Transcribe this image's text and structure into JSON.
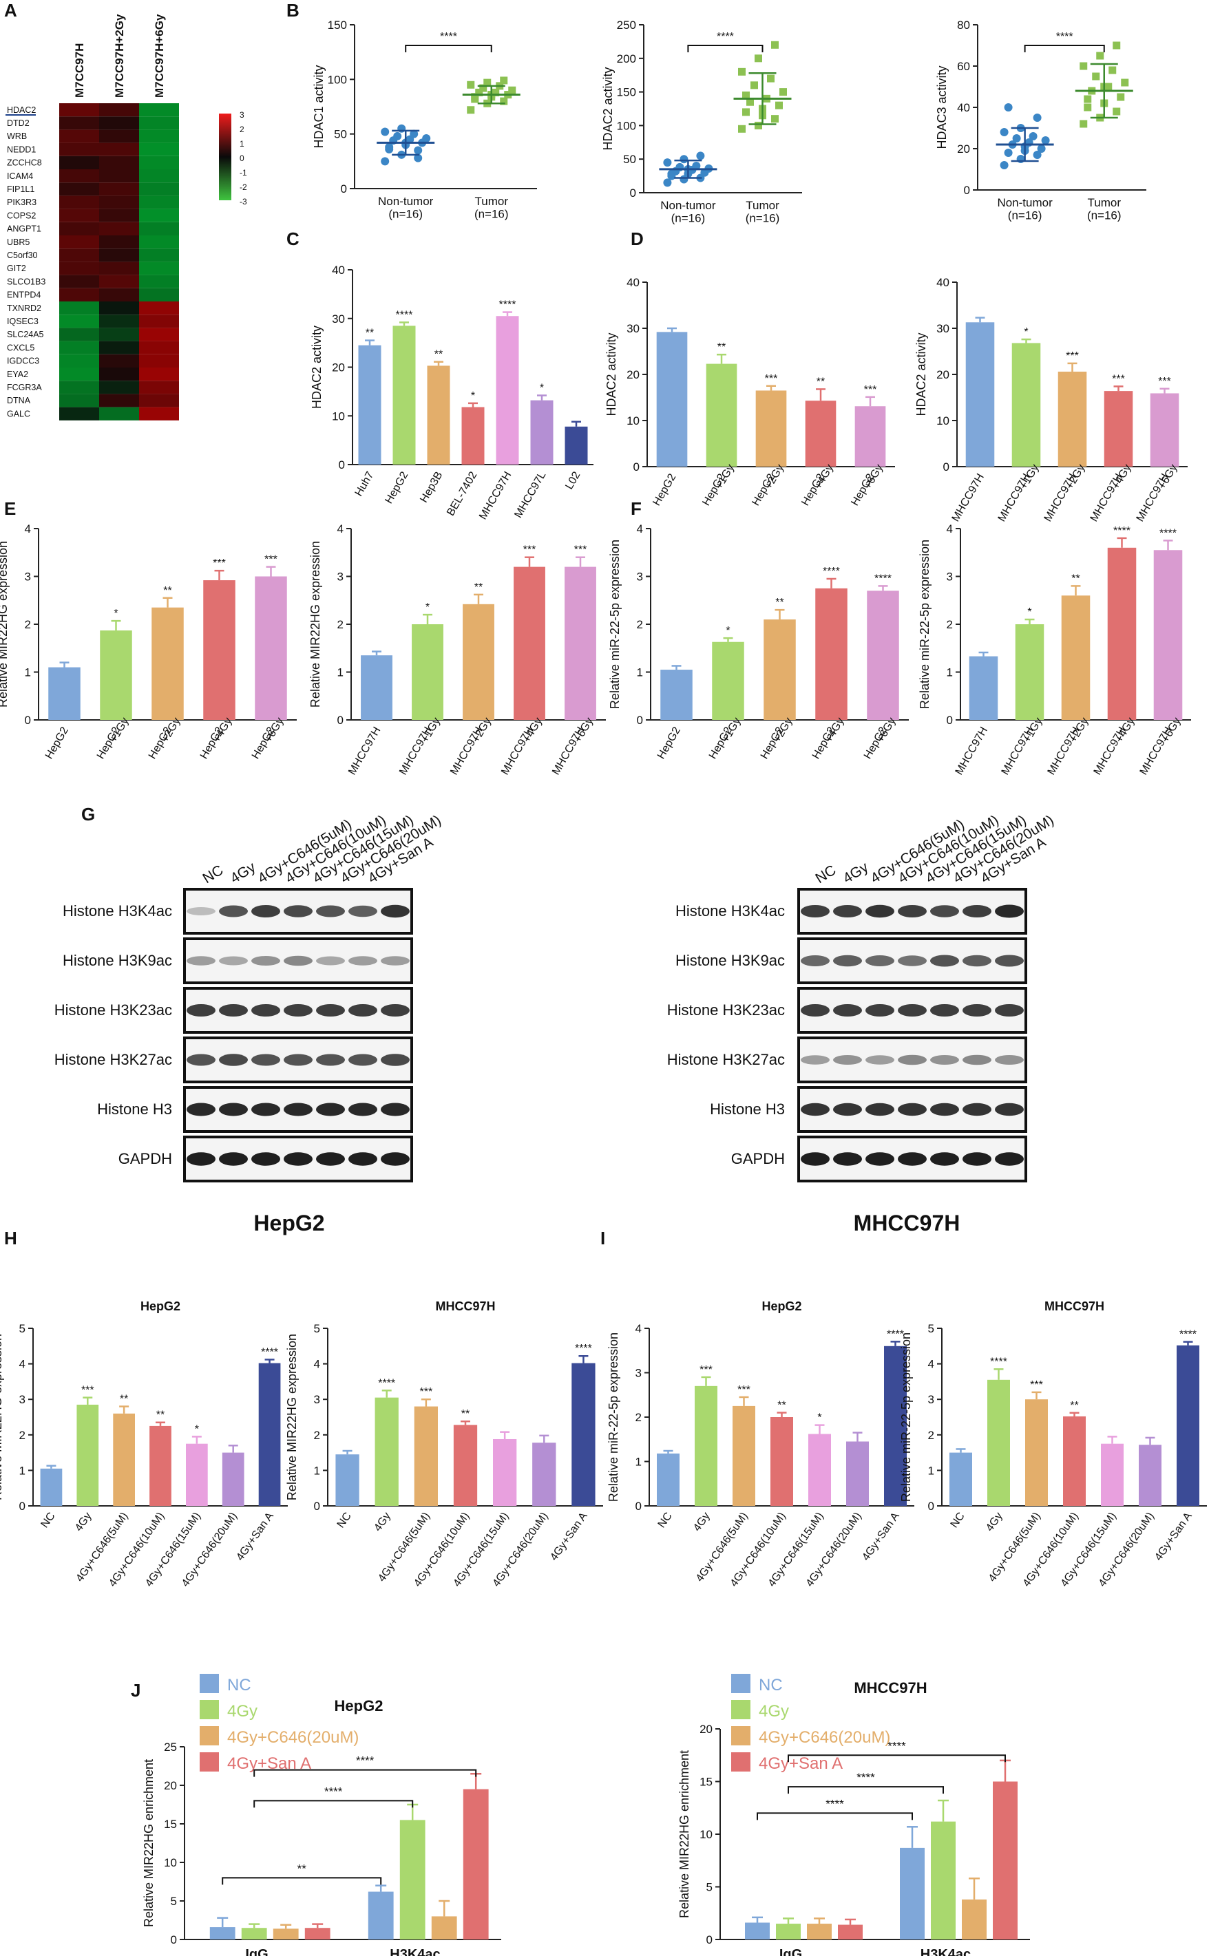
{
  "panel_labels": [
    "A",
    "B",
    "C",
    "D",
    "E",
    "F",
    "G",
    "H",
    "I",
    "J"
  ],
  "colors": {
    "nc": "#7fa7d9",
    "g1": "#a9d86e",
    "g2": "#e3ae6b",
    "g4": "#e07070",
    "g6": "#d99bd0",
    "lav": "#b48fd3",
    "navy": "#3b4b96",
    "lightpink": "#e8a0de",
    "nontumor": "#3b86c6",
    "tumor": "#8cc152",
    "meanbar_tumor": "#3c8a2e",
    "meanbar_nontumor": "#1f4f92",
    "err": "#000000"
  },
  "heatmap": {
    "columns": [
      "M7CC97H",
      "M7CC97H+2Gy",
      "M7CC97H+6Gy"
    ],
    "genes": [
      "HDAC2",
      "DTD2",
      "WRB",
      "NEDD1",
      "ZCCHC8",
      "ICAM4",
      "FIP1L1",
      "PIK3R3",
      "COPS2",
      "ANGPT1",
      "UBR5",
      "C5orf30",
      "GIT2",
      "SLCO1B3",
      "ENTPD4",
      "TXNRD2",
      "IQSEC3",
      "SLC24A5",
      "CXCL5",
      "IGDCC3",
      "EYA2",
      "FCGR3A",
      "DTNA",
      "GALC"
    ],
    "values": [
      [
        1.2,
        0.8,
        -2.2
      ],
      [
        0.6,
        0.3,
        -2.1
      ],
      [
        1.0,
        0.5,
        -2.2
      ],
      [
        0.9,
        0.9,
        -2.3
      ],
      [
        0.3,
        0.6,
        -2.2
      ],
      [
        0.8,
        0.6,
        -2.1
      ],
      [
        0.5,
        0.8,
        -2.0
      ],
      [
        0.9,
        0.7,
        -2.1
      ],
      [
        1.0,
        0.6,
        -2.3
      ],
      [
        0.8,
        0.9,
        -2.0
      ],
      [
        1.1,
        0.5,
        -2.2
      ],
      [
        0.9,
        0.4,
        -2.0
      ],
      [
        0.9,
        0.8,
        -2.2
      ],
      [
        0.6,
        1.0,
        -2.0
      ],
      [
        0.9,
        0.6,
        -1.8
      ],
      [
        -2.0,
        -0.2,
        1.8
      ],
      [
        -2.2,
        -0.6,
        1.6
      ],
      [
        -1.6,
        -0.9,
        1.9
      ],
      [
        -2.0,
        -0.3,
        1.7
      ],
      [
        -2.1,
        0.4,
        1.7
      ],
      [
        -2.2,
        0.2,
        1.9
      ],
      [
        -1.8,
        -0.4,
        1.5
      ],
      [
        -1.7,
        0.5,
        1.3
      ],
      [
        -0.5,
        -1.7,
        1.9
      ]
    ],
    "legend_ticks": [
      "3",
      "2",
      "1",
      "0",
      "-1",
      "-2",
      "-3"
    ]
  },
  "chart_data": [
    {
      "id": "B1",
      "type": "scatter",
      "ylabel": "HDAC1 activity",
      "ylim": [
        0,
        150
      ],
      "yticks": [
        0,
        50,
        100,
        150
      ],
      "categories": [
        "Non-tumor\n(n=16)",
        "Tumor\n(n=16)"
      ],
      "points": [
        [
          25,
          31,
          35,
          38,
          40,
          42,
          44,
          45,
          46,
          48,
          50,
          52,
          55,
          28,
          36,
          42
        ],
        [
          72,
          78,
          80,
          82,
          84,
          86,
          88,
          88,
          90,
          92,
          94,
          95,
          97,
          99,
          84,
          86
        ]
      ],
      "means": [
        42,
        86
      ],
      "sds": [
        11,
        8
      ],
      "sig": "****"
    },
    {
      "id": "B2",
      "type": "scatter",
      "ylabel": "HDAC2 activity",
      "ylim": [
        0,
        250
      ],
      "yticks": [
        0,
        50,
        100,
        150,
        200,
        250
      ],
      "categories": [
        "Non-tumor\n(n=16)",
        "Tumor\n(n=16)"
      ],
      "points": [
        [
          15,
          20,
          22,
          25,
          28,
          30,
          32,
          34,
          36,
          38,
          40,
          45,
          50,
          55,
          28,
          35
        ],
        [
          95,
          100,
          110,
          120,
          125,
          130,
          135,
          140,
          150,
          160,
          170,
          180,
          200,
          220,
          145,
          115
        ]
      ],
      "means": [
        35,
        140
      ],
      "sds": [
        13,
        38
      ],
      "sig": "****"
    },
    {
      "id": "B3",
      "type": "scatter",
      "ylabel": "HDAC3 activity",
      "ylim": [
        0,
        80
      ],
      "yticks": [
        0,
        20,
        40,
        60,
        80
      ],
      "categories": [
        "Non-tumor\n(n=16)",
        "Tumor\n(n=16)"
      ],
      "points": [
        [
          12,
          15,
          17,
          18,
          19,
          20,
          22,
          23,
          24,
          25,
          26,
          28,
          30,
          35,
          40,
          21
        ],
        [
          32,
          35,
          38,
          40,
          42,
          45,
          48,
          50,
          52,
          55,
          58,
          60,
          65,
          70,
          44,
          50
        ]
      ],
      "means": [
        22,
        48
      ],
      "sds": [
        8,
        13
      ],
      "sig": "****"
    },
    {
      "id": "C",
      "type": "bar",
      "ylabel": "HDAC2 activity",
      "ylim": [
        0,
        40
      ],
      "yticks": [
        0,
        10,
        20,
        30,
        40
      ],
      "categories": [
        "Huh7",
        "HepG2",
        "Hep3B",
        "BEL-7402",
        "MHCC97H",
        "MHCC97L",
        "L02"
      ],
      "values": [
        24.5,
        28.5,
        20.3,
        11.8,
        30.5,
        13.2,
        7.8
      ],
      "errors": [
        1.0,
        0.7,
        0.8,
        0.8,
        0.8,
        1.0,
        1.0
      ],
      "sig": [
        "**",
        "****",
        "**",
        "*",
        "****",
        "*",
        ""
      ],
      "color_keys": [
        "nc",
        "g1",
        "g2",
        "g4",
        "lightpink",
        "lav",
        "navy"
      ]
    },
    {
      "id": "D1",
      "type": "bar",
      "ylabel": "HDAC2 activity",
      "ylim": [
        0,
        40
      ],
      "yticks": [
        0,
        10,
        20,
        30,
        40
      ],
      "categories": [
        "HepG2",
        "HepG2\n+1Gy",
        "HepG2\n+2Gy",
        "HepG2\n+4Gy",
        "HepG2\n+6Gy"
      ],
      "values": [
        29.2,
        22.3,
        16.5,
        14.3,
        13.1
      ],
      "errors": [
        0.8,
        2.0,
        1.0,
        2.5,
        2.0
      ],
      "sig": [
        "",
        "**",
        "***",
        "**",
        "***"
      ],
      "color_keys": [
        "nc",
        "g1",
        "g2",
        "g4",
        "g6"
      ]
    },
    {
      "id": "D2",
      "type": "bar",
      "ylabel": "HDAC2 activity",
      "ylim": [
        0,
        40
      ],
      "yticks": [
        0,
        10,
        20,
        30,
        40
      ],
      "categories": [
        "MHCC97H",
        "MHCC97H\n+1Gy",
        "MHCC97H\n+2Gy",
        "MHCC97H\n+4Gy",
        "MHCC97H\n+6Gy"
      ],
      "values": [
        31.3,
        26.8,
        20.6,
        16.4,
        15.9
      ],
      "errors": [
        1.0,
        0.8,
        1.8,
        1.0,
        1.0
      ],
      "sig": [
        "",
        "*",
        "***",
        "***",
        "***"
      ],
      "color_keys": [
        "nc",
        "g1",
        "g2",
        "g4",
        "g6"
      ]
    },
    {
      "id": "E1",
      "type": "bar",
      "ylabel": "Relative MIR22HG expression",
      "ylim": [
        0,
        4
      ],
      "yticks": [
        0,
        1,
        2,
        3,
        4
      ],
      "categories": [
        "HepG2",
        "HepG2\n+1Gy",
        "HepG2\n+2Gy",
        "HepG2\n+4Gy",
        "HepG2\n+6Gy"
      ],
      "values": [
        1.1,
        1.87,
        2.35,
        2.92,
        3.0
      ],
      "errors": [
        0.1,
        0.2,
        0.2,
        0.2,
        0.2
      ],
      "sig": [
        "",
        "*",
        "**",
        "***",
        "***"
      ],
      "color_keys": [
        "nc",
        "g1",
        "g2",
        "g4",
        "g6"
      ]
    },
    {
      "id": "E2",
      "type": "bar",
      "ylabel": "Relative MIR22HG expression",
      "ylim": [
        0,
        4
      ],
      "yticks": [
        0,
        1,
        2,
        3,
        4
      ],
      "categories": [
        "MHCC97H",
        "MHCC97H\n+1Gy",
        "MHCC97H\n+2Gy",
        "MHCC97H\n+4Gy",
        "MHCC97H\n+6Gy"
      ],
      "values": [
        1.35,
        2.0,
        2.42,
        3.2,
        3.2
      ],
      "errors": [
        0.08,
        0.2,
        0.2,
        0.2,
        0.2
      ],
      "sig": [
        "",
        "*",
        "**",
        "***",
        "***"
      ],
      "color_keys": [
        "nc",
        "g1",
        "g2",
        "g4",
        "g6"
      ]
    },
    {
      "id": "F1",
      "type": "bar",
      "ylabel": "Relative miR-22-5p expression",
      "ylim": [
        0,
        4
      ],
      "yticks": [
        0,
        1,
        2,
        3,
        4
      ],
      "categories": [
        "HepG2",
        "HepG2\n+1Gy",
        "HepG2\n+2Gy",
        "HepG2\n+4Gy",
        "HepG2\n+6Gy"
      ],
      "values": [
        1.05,
        1.63,
        2.1,
        2.75,
        2.7
      ],
      "errors": [
        0.08,
        0.08,
        0.2,
        0.2,
        0.1
      ],
      "sig": [
        "",
        "*",
        "**",
        "****",
        "****"
      ],
      "color_keys": [
        "nc",
        "g1",
        "g2",
        "g4",
        "g6"
      ]
    },
    {
      "id": "F2",
      "type": "bar",
      "ylabel": "Relative miR-22-5p expression",
      "ylim": [
        0,
        4
      ],
      "yticks": [
        0,
        1,
        2,
        3,
        4
      ],
      "categories": [
        "MHCC97H",
        "MHCC97H\n+1Gy",
        "MHCC97H\n+2Gy",
        "MHCC97H\n+4Gy",
        "MHCC97H\n+6Gy"
      ],
      "values": [
        1.33,
        2.0,
        2.6,
        3.6,
        3.55
      ],
      "errors": [
        0.08,
        0.1,
        0.2,
        0.2,
        0.2
      ],
      "sig": [
        "",
        "*",
        "**",
        "****",
        "****"
      ],
      "color_keys": [
        "nc",
        "g1",
        "g2",
        "g4",
        "g6"
      ]
    },
    {
      "id": "H1",
      "type": "bar",
      "title": "HepG2",
      "ylabel": "Relative MIR22HG expression",
      "ylim": [
        0,
        5
      ],
      "yticks": [
        0,
        1,
        2,
        3,
        4,
        5
      ],
      "categories": [
        "NC",
        "4Gy",
        "4Gy+C646(5uM)",
        "4Gy+C646(10uM)",
        "4Gy+C646(15uM)",
        "4Gy+C646(20uM)",
        "4Gy+San A"
      ],
      "values": [
        1.05,
        2.85,
        2.6,
        2.25,
        1.75,
        1.5,
        4.02
      ],
      "errors": [
        0.08,
        0.2,
        0.2,
        0.1,
        0.2,
        0.2,
        0.1
      ],
      "sig": [
        "",
        "***",
        "**",
        "**",
        "*",
        "",
        "****"
      ],
      "color_keys": [
        "nc",
        "g1",
        "g2",
        "g4",
        "lightpink",
        "lav",
        "navy"
      ]
    },
    {
      "id": "H2",
      "type": "bar",
      "title": "MHCC97H",
      "ylabel": "Relative MIR22HG expression",
      "ylim": [
        0,
        5
      ],
      "yticks": [
        0,
        1,
        2,
        3,
        4,
        5
      ],
      "categories": [
        "NC",
        "4Gy",
        "4Gy+C646(5uM)",
        "4Gy+C646(10uM)",
        "4Gy+C646(15uM)",
        "4Gy+C646(20uM)",
        "4Gy+San A"
      ],
      "values": [
        1.45,
        3.05,
        2.8,
        2.28,
        1.88,
        1.78,
        4.02
      ],
      "errors": [
        0.1,
        0.2,
        0.2,
        0.1,
        0.2,
        0.2,
        0.2
      ],
      "sig": [
        "",
        "****",
        "***",
        "**",
        "",
        "",
        "****"
      ],
      "color_keys": [
        "nc",
        "g1",
        "g2",
        "g4",
        "lightpink",
        "lav",
        "navy"
      ]
    },
    {
      "id": "I1",
      "type": "bar",
      "title": "HepG2",
      "ylabel": "Relative miR-22-5p expression",
      "ylim": [
        0,
        4
      ],
      "yticks": [
        0,
        1,
        2,
        3,
        4
      ],
      "categories": [
        "NC",
        "4Gy",
        "4Gy+C646(5uM)",
        "4Gy+C646(10uM)",
        "4Gy+C646(15uM)",
        "4Gy+C646(20uM)",
        "4Gy+San A"
      ],
      "values": [
        1.18,
        2.7,
        2.25,
        2.0,
        1.62,
        1.45,
        3.6
      ],
      "errors": [
        0.06,
        0.2,
        0.2,
        0.1,
        0.2,
        0.2,
        0.1
      ],
      "sig": [
        "",
        "***",
        "***",
        "**",
        "*",
        "",
        "****"
      ],
      "color_keys": [
        "nc",
        "g1",
        "g2",
        "g4",
        "lightpink",
        "lav",
        "navy"
      ]
    },
    {
      "id": "I2",
      "type": "bar",
      "title": "MHCC97H",
      "ylabel": "Relative miR-22-5p expression",
      "ylim": [
        0,
        5
      ],
      "yticks": [
        0,
        1,
        2,
        3,
        4,
        5
      ],
      "categories": [
        "NC",
        "4Gy",
        "4Gy+C646(5uM)",
        "4Gy+C646(10uM)",
        "4Gy+C646(15uM)",
        "4Gy+C646(20uM)",
        "4Gy+San A"
      ],
      "values": [
        1.5,
        3.55,
        3.0,
        2.52,
        1.75,
        1.72,
        4.52
      ],
      "errors": [
        0.1,
        0.3,
        0.2,
        0.1,
        0.2,
        0.2,
        0.1
      ],
      "sig": [
        "",
        "****",
        "***",
        "**",
        "",
        "",
        "****"
      ],
      "color_keys": [
        "nc",
        "g1",
        "g2",
        "g4",
        "lightpink",
        "lav",
        "navy"
      ]
    },
    {
      "id": "J1",
      "type": "grouped_bar",
      "title": "HepG2",
      "ylabel": "Relative MIR22HG enrichment",
      "ylim": [
        0,
        25
      ],
      "yticks": [
        0,
        5,
        10,
        15,
        20,
        25
      ],
      "groups": [
        "IgG",
        "H3K4ac"
      ],
      "series": [
        {
          "name": "NC",
          "color_key": "nc",
          "values": [
            1.6,
            6.2
          ],
          "errors": [
            1.2,
            0.8
          ]
        },
        {
          "name": "4Gy",
          "color_key": "g1",
          "values": [
            1.5,
            15.5
          ],
          "errors": [
            0.5,
            2.0
          ]
        },
        {
          "name": "4Gy+C646(20uM)",
          "color_key": "g2",
          "values": [
            1.4,
            3.0
          ],
          "errors": [
            0.5,
            2.0
          ]
        },
        {
          "name": "4Gy+San A",
          "color_key": "g4",
          "values": [
            1.5,
            19.5
          ],
          "errors": [
            0.5,
            2.0
          ]
        }
      ],
      "brackets": [
        {
          "from": [
            0,
            0
          ],
          "to": [
            1,
            0
          ],
          "sig": "**",
          "y": 8
        },
        {
          "from": [
            0,
            1
          ],
          "to": [
            1,
            1
          ],
          "sig": "****",
          "y": 18
        },
        {
          "from": [
            0,
            1
          ],
          "to": [
            1,
            3
          ],
          "sig": "****",
          "y": 22
        }
      ]
    },
    {
      "id": "J2",
      "type": "grouped_bar",
      "title": "MHCC97H",
      "ylabel": "Relative MIR22HG enrichment",
      "ylim": [
        0,
        20
      ],
      "yticks": [
        0,
        5,
        10,
        15,
        20
      ],
      "groups": [
        "IgG",
        "H3K4ac"
      ],
      "series": [
        {
          "name": "NC",
          "color_key": "nc",
          "values": [
            1.6,
            8.7
          ],
          "errors": [
            0.5,
            2.0
          ]
        },
        {
          "name": "4Gy",
          "color_key": "g1",
          "values": [
            1.5,
            11.2
          ],
          "errors": [
            0.5,
            2.0
          ]
        },
        {
          "name": "4Gy+C646(20uM)",
          "color_key": "g2",
          "values": [
            1.5,
            3.8
          ],
          "errors": [
            0.5,
            2.0
          ]
        },
        {
          "name": "4Gy+San A",
          "color_key": "g4",
          "values": [
            1.4,
            15.0
          ],
          "errors": [
            0.5,
            2.0
          ]
        }
      ],
      "brackets": [
        {
          "from": [
            0,
            0
          ],
          "to": [
            1,
            0
          ],
          "sig": "****",
          "y": 12
        },
        {
          "from": [
            0,
            1
          ],
          "to": [
            1,
            1
          ],
          "sig": "****",
          "y": 14.5
        },
        {
          "from": [
            0,
            1
          ],
          "to": [
            1,
            3
          ],
          "sig": "****",
          "y": 17.5
        }
      ]
    }
  ],
  "blots": {
    "lanes": [
      "NC",
      "4Gy",
      "4Gy+C646(5uM)",
      "4Gy+C646(10uM)",
      "4Gy+C646(15uM)",
      "4Gy+C646(20uM)",
      "4Gy+San A"
    ],
    "rows": [
      "Histone H3K4ac",
      "Histone H3K9ac",
      "Histone H3K23ac",
      "Histone H3K27ac",
      "Histone H3",
      "GAPDH"
    ],
    "cell_lines": [
      "HepG2",
      "MHCC97H"
    ],
    "intensities": {
      "HepG2": [
        [
          0.2,
          0.7,
          0.8,
          0.75,
          0.7,
          0.65,
          0.85
        ],
        [
          0.35,
          0.3,
          0.4,
          0.45,
          0.3,
          0.35,
          0.35
        ],
        [
          0.8,
          0.8,
          0.8,
          0.8,
          0.8,
          0.8,
          0.8
        ],
        [
          0.7,
          0.75,
          0.7,
          0.7,
          0.7,
          0.7,
          0.75
        ],
        [
          0.9,
          0.9,
          0.9,
          0.9,
          0.9,
          0.9,
          0.9
        ],
        [
          0.95,
          0.95,
          0.95,
          0.95,
          0.95,
          0.95,
          0.95
        ]
      ],
      "MHCC97H": [
        [
          0.8,
          0.8,
          0.85,
          0.8,
          0.75,
          0.8,
          0.9
        ],
        [
          0.6,
          0.65,
          0.6,
          0.55,
          0.7,
          0.65,
          0.7
        ],
        [
          0.8,
          0.8,
          0.8,
          0.8,
          0.8,
          0.8,
          0.8
        ],
        [
          0.35,
          0.4,
          0.35,
          0.45,
          0.4,
          0.45,
          0.4
        ],
        [
          0.85,
          0.85,
          0.85,
          0.85,
          0.85,
          0.85,
          0.85
        ],
        [
          0.95,
          0.95,
          0.95,
          0.95,
          0.95,
          0.95,
          0.95
        ]
      ]
    }
  }
}
